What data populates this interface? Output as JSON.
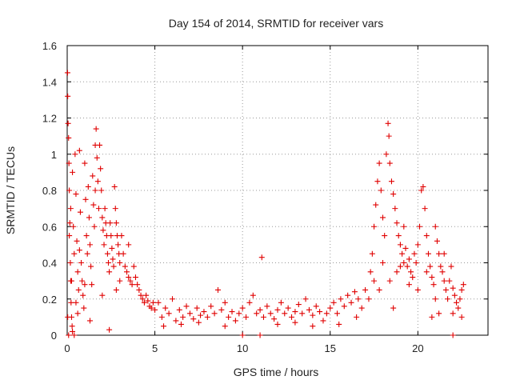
{
  "chart_data": {
    "type": "scatter",
    "title": "Day 154 of 2014, SRMTID for receiver vars",
    "xlabel": "GPS time / hours",
    "ylabel": "SRMTID / TECUs",
    "xlim": [
      0,
      24
    ],
    "ylim": [
      0,
      1.6
    ],
    "xticks": [
      0,
      5,
      10,
      15,
      20
    ],
    "yticks": [
      0,
      0.2,
      0.4,
      0.6,
      0.8,
      1,
      1.2,
      1.4,
      1.6
    ],
    "ytick_labels": [
      "0",
      "0.2",
      "0.4",
      "0.6",
      "0.8",
      "1",
      "1.2",
      "1.4",
      "1.6"
    ],
    "grid": true,
    "marker": "plus",
    "color": "#e00000",
    "series": [
      {
        "name": "vars",
        "points": [
          [
            0.02,
            1.45
          ],
          [
            0.03,
            1.32
          ],
          [
            0.05,
            1.17
          ],
          [
            0.08,
            1.09
          ],
          [
            0.1,
            0.95
          ],
          [
            0.12,
            0.8
          ],
          [
            0.15,
            0.62
          ],
          [
            0.18,
            0.4
          ],
          [
            0.2,
            0.3
          ],
          [
            0.22,
            0.18
          ],
          [
            0.25,
            0.1
          ],
          [
            0.28,
            0.05
          ],
          [
            0.3,
            0.02
          ],
          [
            0.12,
            0.55
          ],
          [
            0.2,
            0.7
          ],
          [
            0.3,
            0.9
          ],
          [
            0.35,
            0.6
          ],
          [
            0.4,
            0.45
          ],
          [
            0.45,
            1.0
          ],
          [
            0.5,
            0.78
          ],
          [
            0.55,
            0.52
          ],
          [
            0.6,
            0.35
          ],
          [
            0.65,
            0.25
          ],
          [
            0.7,
            1.02
          ],
          [
            0.75,
            0.68
          ],
          [
            0.8,
            0.4
          ],
          [
            0.85,
            0.3
          ],
          [
            0.9,
            0.22
          ],
          [
            0.95,
            0.15
          ],
          [
            1.0,
            0.95
          ],
          [
            1.05,
            0.75
          ],
          [
            1.1,
            0.55
          ],
          [
            1.15,
            0.45
          ],
          [
            1.2,
            0.82
          ],
          [
            1.25,
            0.65
          ],
          [
            1.3,
            0.5
          ],
          [
            1.35,
            0.38
          ],
          [
            1.4,
            0.28
          ],
          [
            1.45,
            0.88
          ],
          [
            1.5,
            0.72
          ],
          [
            1.55,
            0.6
          ],
          [
            1.6,
            1.05
          ],
          [
            1.65,
            1.14
          ],
          [
            1.7,
            0.98
          ],
          [
            1.75,
            0.85
          ],
          [
            1.8,
            0.7
          ],
          [
            1.85,
            1.05
          ],
          [
            1.9,
            0.92
          ],
          [
            1.95,
            0.8
          ],
          [
            2.0,
            0.65
          ],
          [
            2.05,
            0.58
          ],
          [
            2.1,
            0.5
          ],
          [
            2.15,
            0.7
          ],
          [
            2.2,
            0.62
          ],
          [
            2.25,
            0.55
          ],
          [
            2.3,
            0.45
          ],
          [
            2.35,
            0.4
          ],
          [
            2.4,
            0.35
          ],
          [
            2.45,
            0.62
          ],
          [
            2.5,
            0.55
          ],
          [
            2.55,
            0.48
          ],
          [
            2.6,
            0.42
          ],
          [
            2.65,
            0.38
          ],
          [
            2.7,
            0.82
          ],
          [
            2.75,
            0.7
          ],
          [
            2.8,
            0.62
          ],
          [
            2.85,
            0.55
          ],
          [
            2.9,
            0.5
          ],
          [
            2.95,
            0.45
          ],
          [
            3.0,
            0.4
          ],
          [
            3.1,
            0.55
          ],
          [
            3.2,
            0.45
          ],
          [
            3.3,
            0.38
          ],
          [
            3.4,
            0.35
          ],
          [
            3.5,
            0.32
          ],
          [
            3.6,
            0.3
          ],
          [
            3.7,
            0.28
          ],
          [
            3.8,
            0.38
          ],
          [
            3.9,
            0.32
          ],
          [
            4.0,
            0.28
          ],
          [
            4.1,
            0.25
          ],
          [
            4.2,
            0.22
          ],
          [
            4.3,
            0.2
          ],
          [
            4.4,
            0.18
          ],
          [
            4.5,
            0.22
          ],
          [
            4.6,
            0.19
          ],
          [
            4.7,
            0.16
          ],
          [
            4.8,
            0.15
          ],
          [
            4.9,
            0.18
          ],
          [
            5.0,
            0.14
          ],
          [
            0.03,
            0.1
          ],
          [
            0.08,
            0.0
          ],
          [
            0.4,
            0.0
          ],
          [
            0.5,
            0.18
          ],
          [
            0.6,
            0.12
          ],
          [
            1.0,
            0.28
          ],
          [
            1.3,
            0.08
          ],
          [
            2.0,
            0.22
          ],
          [
            2.4,
            0.03
          ],
          [
            3.0,
            0.3
          ],
          [
            0.25,
            0.3
          ],
          [
            0.7,
            0.47
          ],
          [
            1.6,
            0.8
          ],
          [
            2.8,
            0.25
          ],
          [
            3.5,
            0.5
          ],
          [
            5.2,
            0.18
          ],
          [
            5.4,
            0.1
          ],
          [
            5.6,
            0.15
          ],
          [
            5.8,
            0.12
          ],
          [
            6.0,
            0.2
          ],
          [
            6.2,
            0.08
          ],
          [
            6.4,
            0.14
          ],
          [
            6.6,
            0.1
          ],
          [
            6.8,
            0.16
          ],
          [
            7.0,
            0.12
          ],
          [
            7.2,
            0.09
          ],
          [
            7.4,
            0.15
          ],
          [
            7.6,
            0.11
          ],
          [
            7.8,
            0.13
          ],
          [
            8.0,
            0.1
          ],
          [
            8.2,
            0.16
          ],
          [
            8.4,
            0.12
          ],
          [
            8.6,
            0.25
          ],
          [
            8.8,
            0.14
          ],
          [
            9.0,
            0.18
          ],
          [
            9.2,
            0.1
          ],
          [
            9.4,
            0.13
          ],
          [
            9.6,
            0.08
          ],
          [
            9.8,
            0.12
          ],
          [
            10.0,
            0.15
          ],
          [
            10.2,
            0.1
          ],
          [
            10.4,
            0.18
          ],
          [
            10.6,
            0.22
          ],
          [
            10.8,
            0.12
          ],
          [
            11.0,
            0.14
          ],
          [
            11.1,
            0.43
          ],
          [
            11.2,
            0.1
          ],
          [
            11.4,
            0.16
          ],
          [
            11.6,
            0.12
          ],
          [
            11.8,
            0.09
          ],
          [
            12.0,
            0.14
          ],
          [
            12.2,
            0.18
          ],
          [
            12.4,
            0.12
          ],
          [
            12.6,
            0.15
          ],
          [
            12.8,
            0.1
          ],
          [
            13.0,
            0.13
          ],
          [
            13.2,
            0.17
          ],
          [
            13.4,
            0.12
          ],
          [
            13.6,
            0.2
          ],
          [
            13.8,
            0.14
          ],
          [
            14.0,
            0.11
          ],
          [
            14.2,
            0.16
          ],
          [
            14.4,
            0.13
          ],
          [
            14.6,
            0.08
          ],
          [
            14.8,
            0.12
          ],
          [
            15.0,
            0.15
          ],
          [
            15.2,
            0.18
          ],
          [
            15.4,
            0.12
          ],
          [
            15.6,
            0.2
          ],
          [
            15.8,
            0.16
          ],
          [
            16.0,
            0.22
          ],
          [
            16.2,
            0.18
          ],
          [
            16.4,
            0.24
          ],
          [
            16.6,
            0.2
          ],
          [
            16.8,
            0.15
          ],
          [
            17.0,
            0.25
          ],
          [
            17.2,
            0.2
          ],
          [
            5.5,
            0.05
          ],
          [
            6.5,
            0.06
          ],
          [
            7.5,
            0.07
          ],
          [
            9.0,
            0.05
          ],
          [
            10.0,
            0.0
          ],
          [
            11.0,
            0.0
          ],
          [
            12.0,
            0.06
          ],
          [
            13.0,
            0.07
          ],
          [
            14.0,
            0.05
          ],
          [
            15.5,
            0.06
          ],
          [
            16.5,
            0.1
          ],
          [
            17.3,
            0.35
          ],
          [
            17.4,
            0.45
          ],
          [
            17.5,
            0.6
          ],
          [
            17.6,
            0.72
          ],
          [
            17.7,
            0.85
          ],
          [
            17.8,
            0.95
          ],
          [
            17.9,
            0.8
          ],
          [
            18.0,
            0.65
          ],
          [
            18.1,
            0.55
          ],
          [
            18.2,
            1.0
          ],
          [
            18.3,
            1.17
          ],
          [
            18.35,
            1.1
          ],
          [
            18.4,
            0.95
          ],
          [
            18.5,
            0.85
          ],
          [
            18.6,
            0.78
          ],
          [
            18.7,
            0.7
          ],
          [
            18.8,
            0.62
          ],
          [
            18.9,
            0.55
          ],
          [
            19.0,
            0.5
          ],
          [
            19.1,
            0.45
          ],
          [
            19.2,
            0.4
          ],
          [
            19.3,
            0.48
          ],
          [
            19.4,
            0.38
          ],
          [
            19.5,
            0.42
          ],
          [
            19.6,
            0.35
          ],
          [
            19.7,
            0.32
          ],
          [
            19.8,
            0.45
          ],
          [
            19.9,
            0.4
          ],
          [
            20.0,
            0.5
          ],
          [
            20.1,
            0.6
          ],
          [
            20.2,
            0.8
          ],
          [
            20.3,
            0.82
          ],
          [
            20.4,
            0.7
          ],
          [
            20.5,
            0.55
          ],
          [
            20.6,
            0.45
          ],
          [
            20.7,
            0.38
          ],
          [
            20.8,
            0.32
          ],
          [
            20.9,
            0.28
          ],
          [
            21.0,
            0.6
          ],
          [
            21.1,
            0.52
          ],
          [
            21.2,
            0.45
          ],
          [
            21.3,
            0.38
          ],
          [
            21.4,
            0.35
          ],
          [
            21.5,
            0.3
          ],
          [
            21.6,
            0.25
          ],
          [
            21.7,
            0.2
          ],
          [
            21.8,
            0.3
          ],
          [
            21.9,
            0.38
          ],
          [
            22.0,
            0.26
          ],
          [
            22.1,
            0.22
          ],
          [
            22.2,
            0.18
          ],
          [
            22.3,
            0.15
          ],
          [
            22.4,
            0.2
          ],
          [
            22.5,
            0.25
          ],
          [
            22.6,
            0.28
          ],
          [
            17.5,
            0.3
          ],
          [
            17.8,
            0.25
          ],
          [
            18.0,
            0.4
          ],
          [
            18.4,
            0.3
          ],
          [
            18.8,
            0.35
          ],
          [
            19.2,
            0.6
          ],
          [
            19.5,
            0.28
          ],
          [
            20.0,
            0.25
          ],
          [
            20.5,
            0.35
          ],
          [
            21.0,
            0.2
          ],
          [
            21.5,
            0.45
          ],
          [
            22.0,
            0.12
          ],
          [
            22.5,
            0.1
          ],
          [
            22.0,
            0.0
          ],
          [
            19.0,
            0.38
          ],
          [
            18.6,
            0.15
          ],
          [
            20.8,
            0.1
          ],
          [
            21.2,
            0.12
          ]
        ]
      }
    ]
  }
}
